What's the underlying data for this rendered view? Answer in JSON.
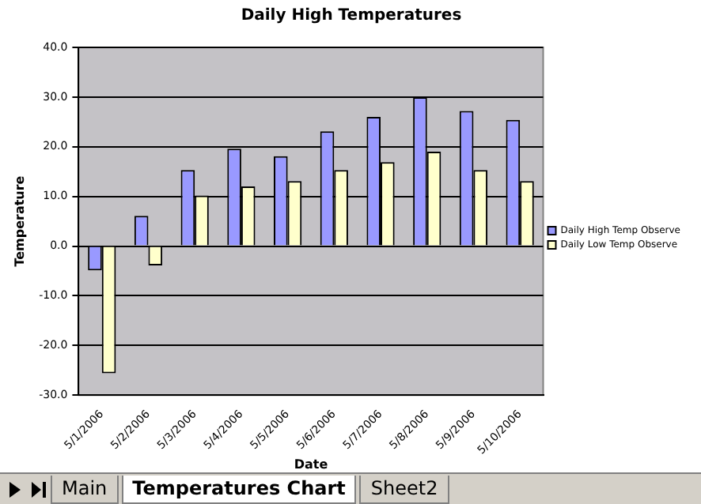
{
  "chart_data": {
    "type": "bar",
    "title": "Daily High Temperatures",
    "xlabel": "Date",
    "ylabel": "Temperature",
    "categories": [
      "5/1/2006",
      "5/2/2006",
      "5/3/2006",
      "5/4/2006",
      "5/5/2006",
      "5/6/2006",
      "5/7/2006",
      "5/8/2006",
      "5/9/2006",
      "5/10/2006"
    ],
    "series": [
      {
        "name": "Daily High Temp Observe",
        "color": "#9999ff",
        "values": [
          -4.9,
          6.1,
          15.3,
          19.6,
          18.1,
          23.1,
          26,
          30,
          27.2,
          25.4
        ]
      },
      {
        "name": "Daily Low Temp Observe",
        "color": "#ffffcc",
        "values": [
          -25.6,
          -3.9,
          10.2,
          12,
          13.1,
          15.3,
          16.9,
          19,
          15.3,
          13.1
        ]
      }
    ],
    "ylim": [
      -30,
      40
    ],
    "yticks": [
      {
        "value": -30,
        "label": "-30.0"
      },
      {
        "value": -20,
        "label": "-20.0"
      },
      {
        "value": -10,
        "label": "-10.0"
      },
      {
        "value": 0,
        "label": "0.0"
      },
      {
        "value": 10,
        "label": "10.0"
      },
      {
        "value": 20,
        "label": "20.0"
      },
      {
        "value": 30,
        "label": "30.0"
      },
      {
        "value": 40,
        "label": "40.0"
      }
    ],
    "grid": "y",
    "legend": "right",
    "annotations": [
      "Main",
      "Temperatures Chart",
      "Sheet2"
    ]
  }
}
